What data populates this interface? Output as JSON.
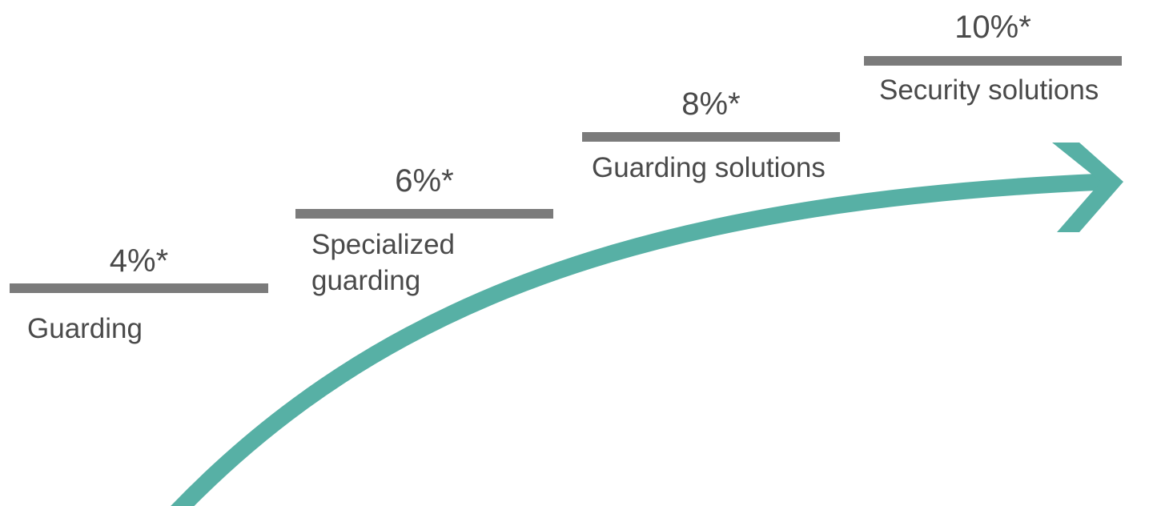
{
  "colors": {
    "bar": "#7b7b7b",
    "text": "#4a4a4a",
    "arrow": "#57b0a5"
  },
  "steps": [
    {
      "value": "4%*",
      "label_lines": [
        "Guarding"
      ]
    },
    {
      "value": "6%*",
      "label_lines": [
        "Specialized",
        "guarding"
      ]
    },
    {
      "value": "8%*",
      "label_lines": [
        "Guarding solutions"
      ]
    },
    {
      "value": "10%*",
      "label_lines": [
        "Security solutions"
      ]
    }
  ],
  "arrow": {
    "icon": "growth-arrow-icon"
  }
}
